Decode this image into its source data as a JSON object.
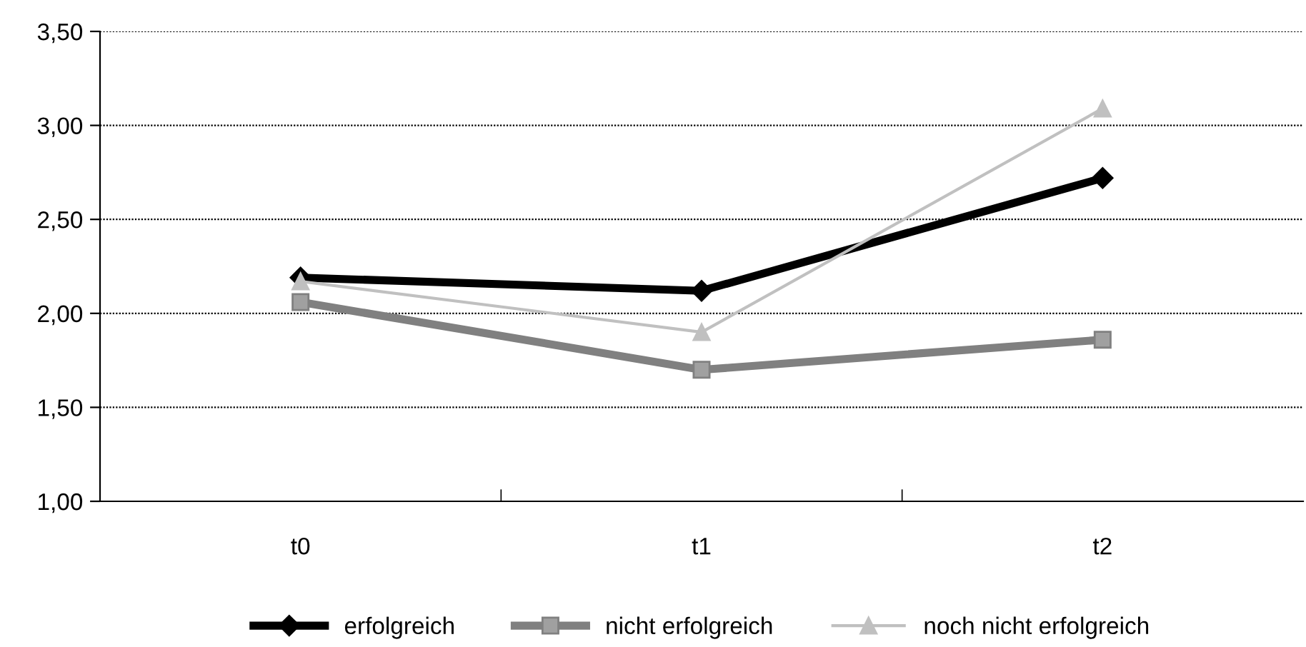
{
  "chart_data": {
    "type": "line",
    "categories": [
      "t0",
      "t1",
      "t2"
    ],
    "series": [
      {
        "name": "erfolgreich",
        "color": "#000000",
        "marker": "diamond",
        "values": [
          2.19,
          2.12,
          2.72
        ]
      },
      {
        "name": "nicht erfolgreich",
        "color": "#808080",
        "marker": "square",
        "values": [
          2.06,
          1.7,
          1.86
        ]
      },
      {
        "name": "noch nicht erfolgreich",
        "color": "#c0c0c0",
        "marker": "triangle",
        "values": [
          2.17,
          1.9,
          3.09
        ]
      }
    ],
    "ylim": [
      1.0,
      3.5
    ],
    "yticks": [
      {
        "value": 1.0,
        "label": "1,00"
      },
      {
        "value": 1.5,
        "label": "1,50"
      },
      {
        "value": 2.0,
        "label": "2,00"
      },
      {
        "value": 2.5,
        "label": "2,50"
      },
      {
        "value": 3.0,
        "label": "3,00"
      },
      {
        "value": 3.5,
        "label": "3,50"
      }
    ],
    "grid": "y",
    "legend": "bottom",
    "line_style": "solid"
  }
}
